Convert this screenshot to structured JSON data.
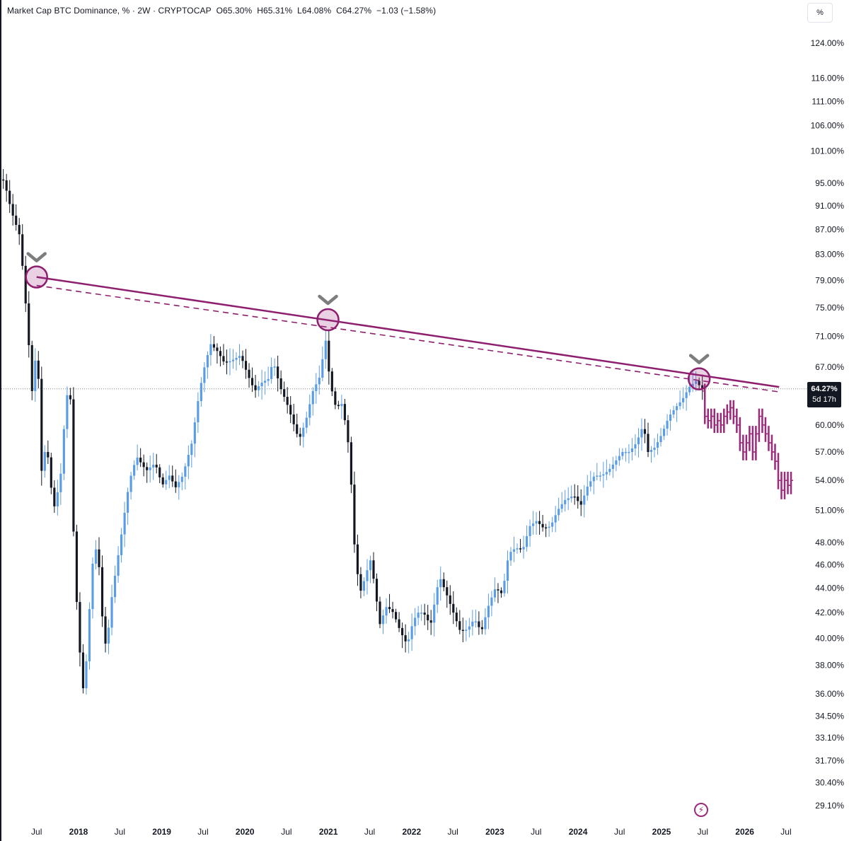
{
  "header": {
    "symbol": "Market Cap BTC Dominance, % · 2W · CRYPTOCAP",
    "open": "O65.30%",
    "high": "H65.31%",
    "low": "L64.08%",
    "close": "C64.27%",
    "change": "−1.03 (−1.58%)"
  },
  "axis_unit": "%",
  "current_price": {
    "value": "64.27%",
    "countdown": "5d 17h"
  },
  "colors": {
    "up": "#5b9ce6",
    "down": "#131722",
    "trendline": "#8e1f6e",
    "projection": "#9c2a7a",
    "marker": "#7d7d7d"
  },
  "icons": {
    "countdown_badge": "lightning-icon",
    "peak_marker": "chevron-down-icon"
  },
  "chart_data": {
    "type": "candlestick",
    "title": "",
    "xlabel": "",
    "ylabel": "",
    "scale": "log",
    "ylim": [
      28.5,
      128
    ],
    "grid": false,
    "x_ticks": [
      "Jul",
      "2018",
      "Jul",
      "2019",
      "Jul",
      "2020",
      "Jul",
      "2021",
      "Jul",
      "2022",
      "Jul",
      "2023",
      "Jul",
      "2024",
      "Jul",
      "2025",
      "Jul",
      "2026",
      "Jul"
    ],
    "x_tick_dates": [
      "2017-07",
      "2018-01",
      "2018-07",
      "2019-01",
      "2019-07",
      "2020-01",
      "2020-07",
      "2021-01",
      "2021-07",
      "2022-01",
      "2022-07",
      "2023-01",
      "2023-07",
      "2024-01",
      "2024-07",
      "2025-01",
      "2025-07",
      "2026-01",
      "2026-07"
    ],
    "y_ticks": [
      124,
      116,
      111,
      106,
      101,
      95,
      91,
      87,
      83,
      79,
      75,
      71,
      67,
      60,
      57,
      54,
      51,
      48,
      46,
      44,
      42,
      40,
      38,
      36,
      34.5,
      33.1,
      31.7,
      30.4,
      29.1
    ],
    "y_tick_labels": [
      "124.00%",
      "116.00%",
      "111.00%",
      "106.00%",
      "101.00%",
      "95.00%",
      "91.00%",
      "87.00%",
      "83.00%",
      "79.00%",
      "75.00%",
      "71.00%",
      "67.00%",
      "60.00%",
      "57.00%",
      "54.00%",
      "51.00%",
      "48.00%",
      "46.00%",
      "44.00%",
      "42.00%",
      "40.00%",
      "38.00%",
      "36.00%",
      "34.50%",
      "33.10%",
      "31.70%",
      "30.40%",
      "29.10%"
    ],
    "anchors": [
      [
        "2017-01-01",
        96
      ],
      [
        "2017-02-15",
        95.5
      ],
      [
        "2017-03-20",
        90
      ],
      [
        "2017-04-25",
        86
      ],
      [
        "2017-05-25",
        74
      ],
      [
        "2017-06-18",
        64
      ],
      [
        "2017-07-10",
        70
      ],
      [
        "2017-07-30",
        55
      ],
      [
        "2017-08-20",
        58
      ],
      [
        "2017-09-20",
        51
      ],
      [
        "2017-10-20",
        54
      ],
      [
        "2017-11-15",
        63
      ],
      [
        "2017-12-01",
        65
      ],
      [
        "2017-12-20",
        46
      ],
      [
        "2018-01-10",
        40
      ],
      [
        "2018-01-25",
        36
      ],
      [
        "2018-02-10",
        38
      ],
      [
        "2018-03-10",
        46
      ],
      [
        "2018-04-01",
        48
      ],
      [
        "2018-04-20",
        42
      ],
      [
        "2018-05-10",
        39
      ],
      [
        "2018-06-01",
        43
      ],
      [
        "2018-07-10",
        48
      ],
      [
        "2018-08-20",
        54
      ],
      [
        "2018-09-20",
        56.5
      ],
      [
        "2018-11-01",
        55
      ],
      [
        "2018-12-10",
        55.8
      ],
      [
        "2019-01-10",
        53.5
      ],
      [
        "2019-02-10",
        54.5
      ],
      [
        "2019-03-10",
        53.3
      ],
      [
        "2019-04-10",
        54.5
      ],
      [
        "2019-05-20",
        58
      ],
      [
        "2019-06-20",
        63.5
      ],
      [
        "2019-07-10",
        66.5
      ],
      [
        "2019-08-10",
        70
      ],
      [
        "2019-09-10",
        69
      ],
      [
        "2019-10-10",
        67.5
      ],
      [
        "2019-11-10",
        67.8
      ],
      [
        "2019-12-20",
        68.5
      ],
      [
        "2020-01-20",
        66
      ],
      [
        "2020-02-20",
        64
      ],
      [
        "2020-03-20",
        65
      ],
      [
        "2020-04-20",
        65.5
      ],
      [
        "2020-05-10",
        67.8
      ],
      [
        "2020-06-10",
        64.5
      ],
      [
        "2020-07-10",
        62.5
      ],
      [
        "2020-08-10",
        60
      ],
      [
        "2020-09-01",
        58.3
      ],
      [
        "2020-10-01",
        60.5
      ],
      [
        "2020-11-01",
        64
      ],
      [
        "2020-12-05",
        66
      ],
      [
        "2020-12-25",
        71
      ],
      [
        "2021-01-15",
        65
      ],
      [
        "2021-02-10",
        62
      ],
      [
        "2021-03-10",
        62.5
      ],
      [
        "2021-04-10",
        57
      ],
      [
        "2021-05-01",
        48
      ],
      [
        "2021-05-25",
        43.5
      ],
      [
        "2021-06-20",
        45
      ],
      [
        "2021-07-10",
        46.5
      ],
      [
        "2021-08-01",
        44
      ],
      [
        "2021-08-20",
        41
      ],
      [
        "2021-09-20",
        42.5
      ],
      [
        "2021-10-20",
        42
      ],
      [
        "2021-11-20",
        40.5
      ],
      [
        "2021-12-20",
        39.5
      ],
      [
        "2022-01-10",
        41
      ],
      [
        "2022-02-01",
        42
      ],
      [
        "2022-03-01",
        42
      ],
      [
        "2022-04-01",
        41
      ],
      [
        "2022-05-10",
        45
      ],
      [
        "2022-06-10",
        43.5
      ],
      [
        "2022-07-10",
        42
      ],
      [
        "2022-08-10",
        40.5
      ],
      [
        "2022-09-10",
        40.7
      ],
      [
        "2022-10-10",
        41.5
      ],
      [
        "2022-11-10",
        40.5
      ],
      [
        "2022-12-10",
        42.5
      ],
      [
        "2023-01-10",
        44
      ],
      [
        "2023-02-10",
        43.5
      ],
      [
        "2023-03-10",
        47
      ],
      [
        "2023-04-10",
        47.5
      ],
      [
        "2023-05-10",
        47.3
      ],
      [
        "2023-06-10",
        49.5
      ],
      [
        "2023-07-10",
        50
      ],
      [
        "2023-08-10",
        49.3
      ],
      [
        "2023-09-10",
        49.5
      ],
      [
        "2023-10-10",
        51
      ],
      [
        "2023-11-10",
        52
      ],
      [
        "2023-12-20",
        52.5
      ],
      [
        "2024-01-20",
        51.5
      ],
      [
        "2024-02-20",
        53.5
      ],
      [
        "2024-03-20",
        54.5
      ],
      [
        "2024-04-20",
        54.5
      ],
      [
        "2024-05-20",
        55
      ],
      [
        "2024-06-20",
        56
      ],
      [
        "2024-07-20",
        57
      ],
      [
        "2024-08-20",
        57
      ],
      [
        "2024-09-20",
        58
      ],
      [
        "2024-10-20",
        60
      ],
      [
        "2024-11-10",
        57
      ],
      [
        "2024-12-10",
        57.5
      ],
      [
        "2025-01-10",
        59
      ],
      [
        "2025-02-10",
        61
      ],
      [
        "2025-03-10",
        62
      ],
      [
        "2025-04-10",
        63
      ],
      [
        "2025-05-10",
        64.5
      ],
      [
        "2025-06-10",
        65.3
      ],
      [
        "2025-07-01",
        64.27
      ]
    ],
    "trendline": {
      "start": [
        "2017-07-01",
        79.5
      ],
      "end": [
        "2026-06-01",
        64.5
      ]
    },
    "touch_points": [
      [
        "2017-07-01",
        79.5
      ],
      [
        "2020-12-30",
        73.3
      ],
      [
        "2025-06-15",
        65.5
      ]
    ],
    "projection": [
      61,
      60.5,
      61,
      60,
      60.5,
      60,
      61,
      61.5,
      62,
      61,
      60,
      58,
      57,
      58,
      59,
      57,
      59,
      61,
      60,
      59,
      58,
      57,
      56,
      54,
      53,
      54,
      53.5,
      54
    ]
  }
}
